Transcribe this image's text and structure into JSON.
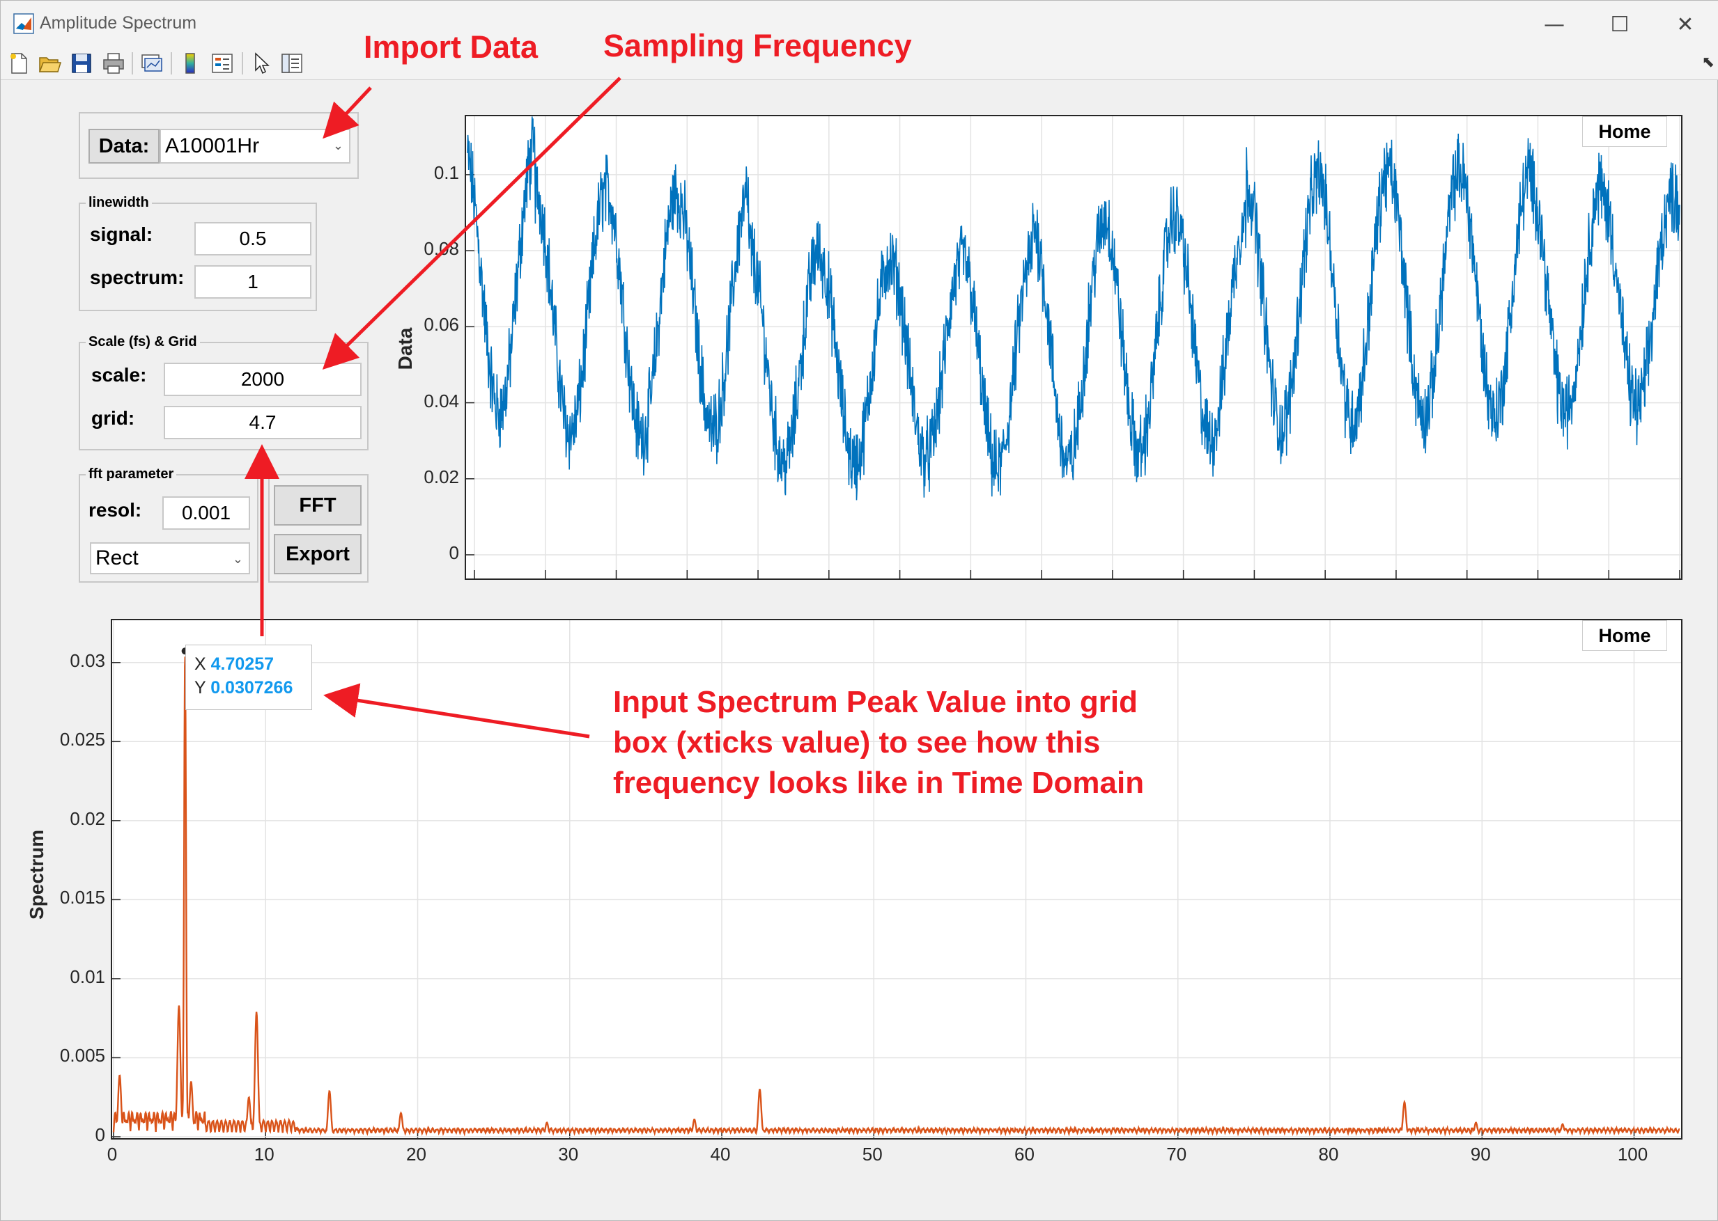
{
  "window": {
    "title": "Amplitude Spectrum",
    "controls": {
      "minimize": "—",
      "maximize": "☐",
      "close": "✕"
    }
  },
  "toolbar": {
    "icons": [
      "new-figure-icon",
      "open-file-icon",
      "save-icon",
      "print-icon",
      "link-plot-icon",
      "colorbar-icon",
      "legend-icon",
      "pointer-icon",
      "property-inspector-icon"
    ]
  },
  "data_panel": {
    "button_label": "Data:",
    "selected": "A10001Hr"
  },
  "linewidth_panel": {
    "title": "linewidth",
    "signal_label": "signal:",
    "signal_value": "0.5",
    "spectrum_label": "spectrum:",
    "spectrum_value": "1"
  },
  "scale_panel": {
    "title": "Scale (fs) & Grid",
    "scale_label": "scale:",
    "scale_value": "2000",
    "grid_label": "grid:",
    "grid_value": "4.7"
  },
  "fft_panel": {
    "title": "fft parameter",
    "resol_label": "resol:",
    "resol_value": "0.001",
    "window_selected": "Rect",
    "fft_button": "FFT",
    "export_button": "Export"
  },
  "top_axes": {
    "home_label": "Home",
    "ylabel": "Data",
    "yticks": [
      "0.1",
      "0.08",
      "0.06",
      "0.04",
      "0.02",
      "0"
    ]
  },
  "bottom_axes": {
    "home_label": "Home",
    "ylabel": "Spectrum",
    "yticks": [
      "0.03",
      "0.025",
      "0.02",
      "0.015",
      "0.01",
      "0.005",
      "0"
    ],
    "xticks": [
      "0",
      "10",
      "20",
      "30",
      "40",
      "50",
      "60",
      "70",
      "80",
      "90",
      "100"
    ]
  },
  "datatip": {
    "x_label": "X",
    "x_value": "4.70257",
    "y_label": "Y",
    "y_value": "0.0307266"
  },
  "annotations": {
    "import_data": "Import Data",
    "sampling_frequency": "Sampling Frequency",
    "peak_line1": "Input Spectrum Peak Value into grid",
    "peak_line2": "box (xticks value) to see how this",
    "peak_line3": "frequency looks like in Time Domain"
  },
  "colors": {
    "signal": "#0072bd",
    "spectrum": "#d95319",
    "annotation": "#ee1c24",
    "datatip_value": "#1199ee"
  },
  "chart_data": [
    {
      "type": "line",
      "ylabel": "Data",
      "ylim": [
        0,
        0.115
      ],
      "yticks": [
        0,
        0.02,
        0.04,
        0.06,
        0.08,
        0.1
      ],
      "grid": true,
      "note_series": "Noisy periodic signal, about 17 cycles visible, oscillating between ~0.02 and ~0.11",
      "x_grid_lines_approx": 17,
      "series": [
        {
          "cycle_peaks": [
            0.114,
            0.103,
            0.103,
            0.101,
            0.087,
            0.084,
            0.082,
            0.085,
            0.093,
            0.096,
            0.095,
            0.105,
            0.108,
            0.108,
            0.108,
            0.104,
            0.101,
            0.095
          ],
          "cycle_troughs": [
            0.03,
            0.025,
            0.024,
            0.026,
            0.018,
            0.018,
            0.02,
            0.016,
            0.017,
            0.02,
            0.024,
            0.026,
            0.028,
            0.029,
            0.03,
            0.031,
            0.033
          ]
        }
      ]
    },
    {
      "type": "line",
      "xlabel": "",
      "ylabel": "Spectrum",
      "xlim": [
        0,
        103
      ],
      "ylim": [
        0,
        0.0325
      ],
      "xticks": [
        0,
        10,
        20,
        30,
        40,
        50,
        60,
        70,
        80,
        90,
        100
      ],
      "yticks": [
        0,
        0.005,
        0.01,
        0.015,
        0.02,
        0.025,
        0.03
      ],
      "grid": true,
      "peaks": [
        {
          "x": 0.4,
          "y": 0.0039
        },
        {
          "x": 4.3,
          "y": 0.0083
        },
        {
          "x": 4.70257,
          "y": 0.0307266
        },
        {
          "x": 5.1,
          "y": 0.0035
        },
        {
          "x": 8.9,
          "y": 0.0025
        },
        {
          "x": 9.4,
          "y": 0.0079
        },
        {
          "x": 14.2,
          "y": 0.0029
        },
        {
          "x": 18.9,
          "y": 0.0015
        },
        {
          "x": 28.5,
          "y": 0.0009
        },
        {
          "x": 38.2,
          "y": 0.0011
        },
        {
          "x": 42.5,
          "y": 0.003
        },
        {
          "x": 84.9,
          "y": 0.0022
        },
        {
          "x": 89.6,
          "y": 0.0009
        },
        {
          "x": 95.3,
          "y": 0.0008
        }
      ]
    }
  ]
}
